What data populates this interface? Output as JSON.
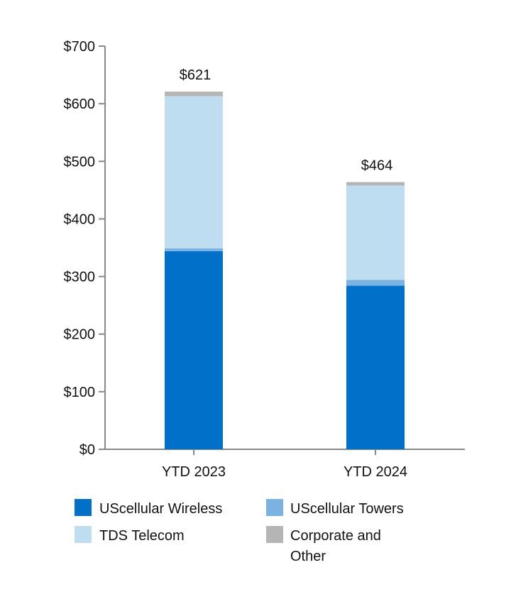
{
  "chart_data": {
    "type": "bar",
    "stacked": true,
    "categories": [
      "YTD 2023",
      "YTD 2024"
    ],
    "series": [
      {
        "name": "UScellular Wireless",
        "values": [
          344,
          284
        ],
        "color": "#0070C8"
      },
      {
        "name": "UScellular Towers",
        "values": [
          5,
          10
        ],
        "color": "#79B3E1"
      },
      {
        "name": "TDS Telecom",
        "values": [
          264,
          164
        ],
        "color": "#BFDDF1"
      },
      {
        "name": "Corporate and Other",
        "values": [
          8,
          6
        ],
        "color": "#B5B5B5"
      }
    ],
    "totals": [
      "$621",
      "$464"
    ],
    "y_ticks": [
      "$0",
      "$100",
      "$200",
      "$300",
      "$400",
      "$500",
      "$600",
      "$700"
    ],
    "ylim": [
      0,
      700
    ],
    "legend_lines": [
      [
        "UScellular Wireless"
      ],
      [
        "UScellular Towers"
      ],
      [
        "TDS Telecom"
      ],
      [
        "Corporate and",
        "Other"
      ]
    ],
    "axis_color": "#888888",
    "title": "",
    "xlabel": "",
    "ylabel": ""
  }
}
